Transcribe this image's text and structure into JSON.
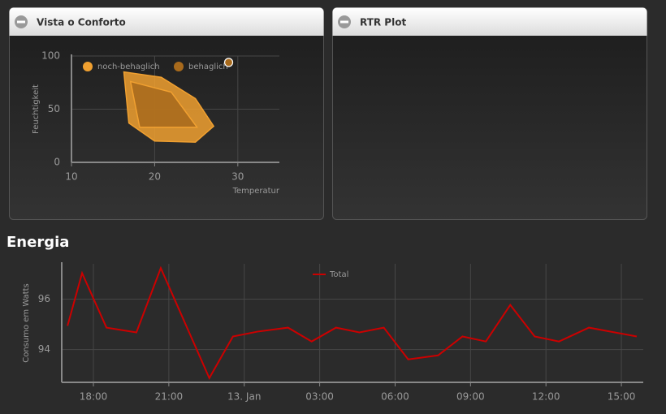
{
  "panels": [
    {
      "title": "Vista o Conforto"
    },
    {
      "title": "RTR Plot"
    }
  ],
  "section_title": "Energia",
  "chart_data": [
    {
      "type": "polygon",
      "xlabel": "Temperatur",
      "ylabel": "Feuchtigkeit",
      "xlim": [
        10,
        35
      ],
      "ylim": [
        0,
        100
      ],
      "xticks": [
        10,
        20,
        30
      ],
      "yticks": [
        0,
        50,
        100
      ],
      "grid": true,
      "series": [
        {
          "name": "noch-behaglich",
          "color": "#f0a030",
          "x": [
            16.3,
            20.8,
            24.9,
            27.1,
            24.9,
            20,
            16.9
          ],
          "y": [
            85,
            80,
            60,
            34,
            19,
            20,
            37
          ]
        },
        {
          "name": "behaglich",
          "color": "#a86a1c",
          "x": [
            17.1,
            22,
            25.1,
            18.2
          ],
          "y": [
            76,
            66,
            33,
            33
          ]
        },
        {
          "color": "#a86a1c",
          "x": [
            28.9
          ],
          "y": [
            94
          ]
        }
      ]
    },
    {
      "type": "line",
      "ylabel": "Consumo em Watts",
      "xlim": [
        16.74,
        39.87
      ],
      "ylim": [
        92.7,
        97.4
      ],
      "xticks": [
        {
          "value": 18,
          "label": "18:00"
        },
        {
          "value": 21,
          "label": "21:00"
        },
        {
          "value": 24,
          "label": "13. Jan"
        },
        {
          "value": 27,
          "label": "03:00"
        },
        {
          "value": 30,
          "label": "06:00"
        },
        {
          "value": 33,
          "label": "09:00"
        },
        {
          "value": 36,
          "label": "12:00"
        },
        {
          "value": 39,
          "label": "15:00"
        }
      ],
      "yticks": [
        94,
        96
      ],
      "grid": true,
      "series": [
        {
          "name": "Total",
          "color": "#cc0000",
          "x": [
            16.97,
            17.55,
            18.52,
            19.71,
            20.68,
            22.61,
            23.55,
            24.52,
            25.74,
            26.68,
            27.65,
            28.58,
            29.55,
            30.52,
            31.71,
            32.68,
            33.61,
            34.58,
            35.55,
            36.52,
            37.71,
            39.61
          ],
          "y": [
            94.94,
            97.03,
            94.87,
            94.68,
            97.23,
            92.87,
            94.52,
            94.71,
            94.87,
            94.32,
            94.87,
            94.68,
            94.87,
            93.61,
            93.77,
            94.52,
            94.32,
            95.77,
            94.52,
            94.32,
            94.87,
            94.52
          ]
        }
      ]
    }
  ]
}
